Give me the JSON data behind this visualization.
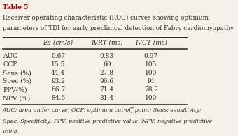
{
  "title_line1": "Table 5",
  "title_line2": "Receiver operating characteristic (ROC) curves showing optimum",
  "title_line3": "parameters of TDI for early preclinical detection of Fabry cardiomyopathy",
  "col_headers": [
    "Ea (cm/s)",
    "IVRT (ms)",
    "IVCT (ms)"
  ],
  "row_labels": [
    "AUC",
    "OCP",
    "Sens (%)",
    "Spec (%)",
    "PPV(%)",
    "NPV (%)"
  ],
  "data": [
    [
      "0.67",
      "0.83",
      "0.97"
    ],
    [
      "15.5",
      "60",
      "105"
    ],
    [
      "44.4",
      "27.8",
      "100"
    ],
    [
      "93.2",
      "96.6",
      "91"
    ],
    [
      "66.7",
      "71.4",
      "78.2"
    ],
    [
      "84.6",
      "81.4",
      "100"
    ]
  ],
  "footnote_lines": [
    "AUC: area under curve; OCP: optimum cut-off point; Sens: sensitivity;",
    "Spec: Specificity; PPV: positive predictive value; NPV: negative predictive",
    "value."
  ],
  "bg_color": "#f5f0e8",
  "title_color": "#8B0000",
  "text_color": "#2c2c2c",
  "title_fontsize": 6.5,
  "header_fontsize": 6.5,
  "data_fontsize": 6.5,
  "footnote_fontsize": 5.8
}
